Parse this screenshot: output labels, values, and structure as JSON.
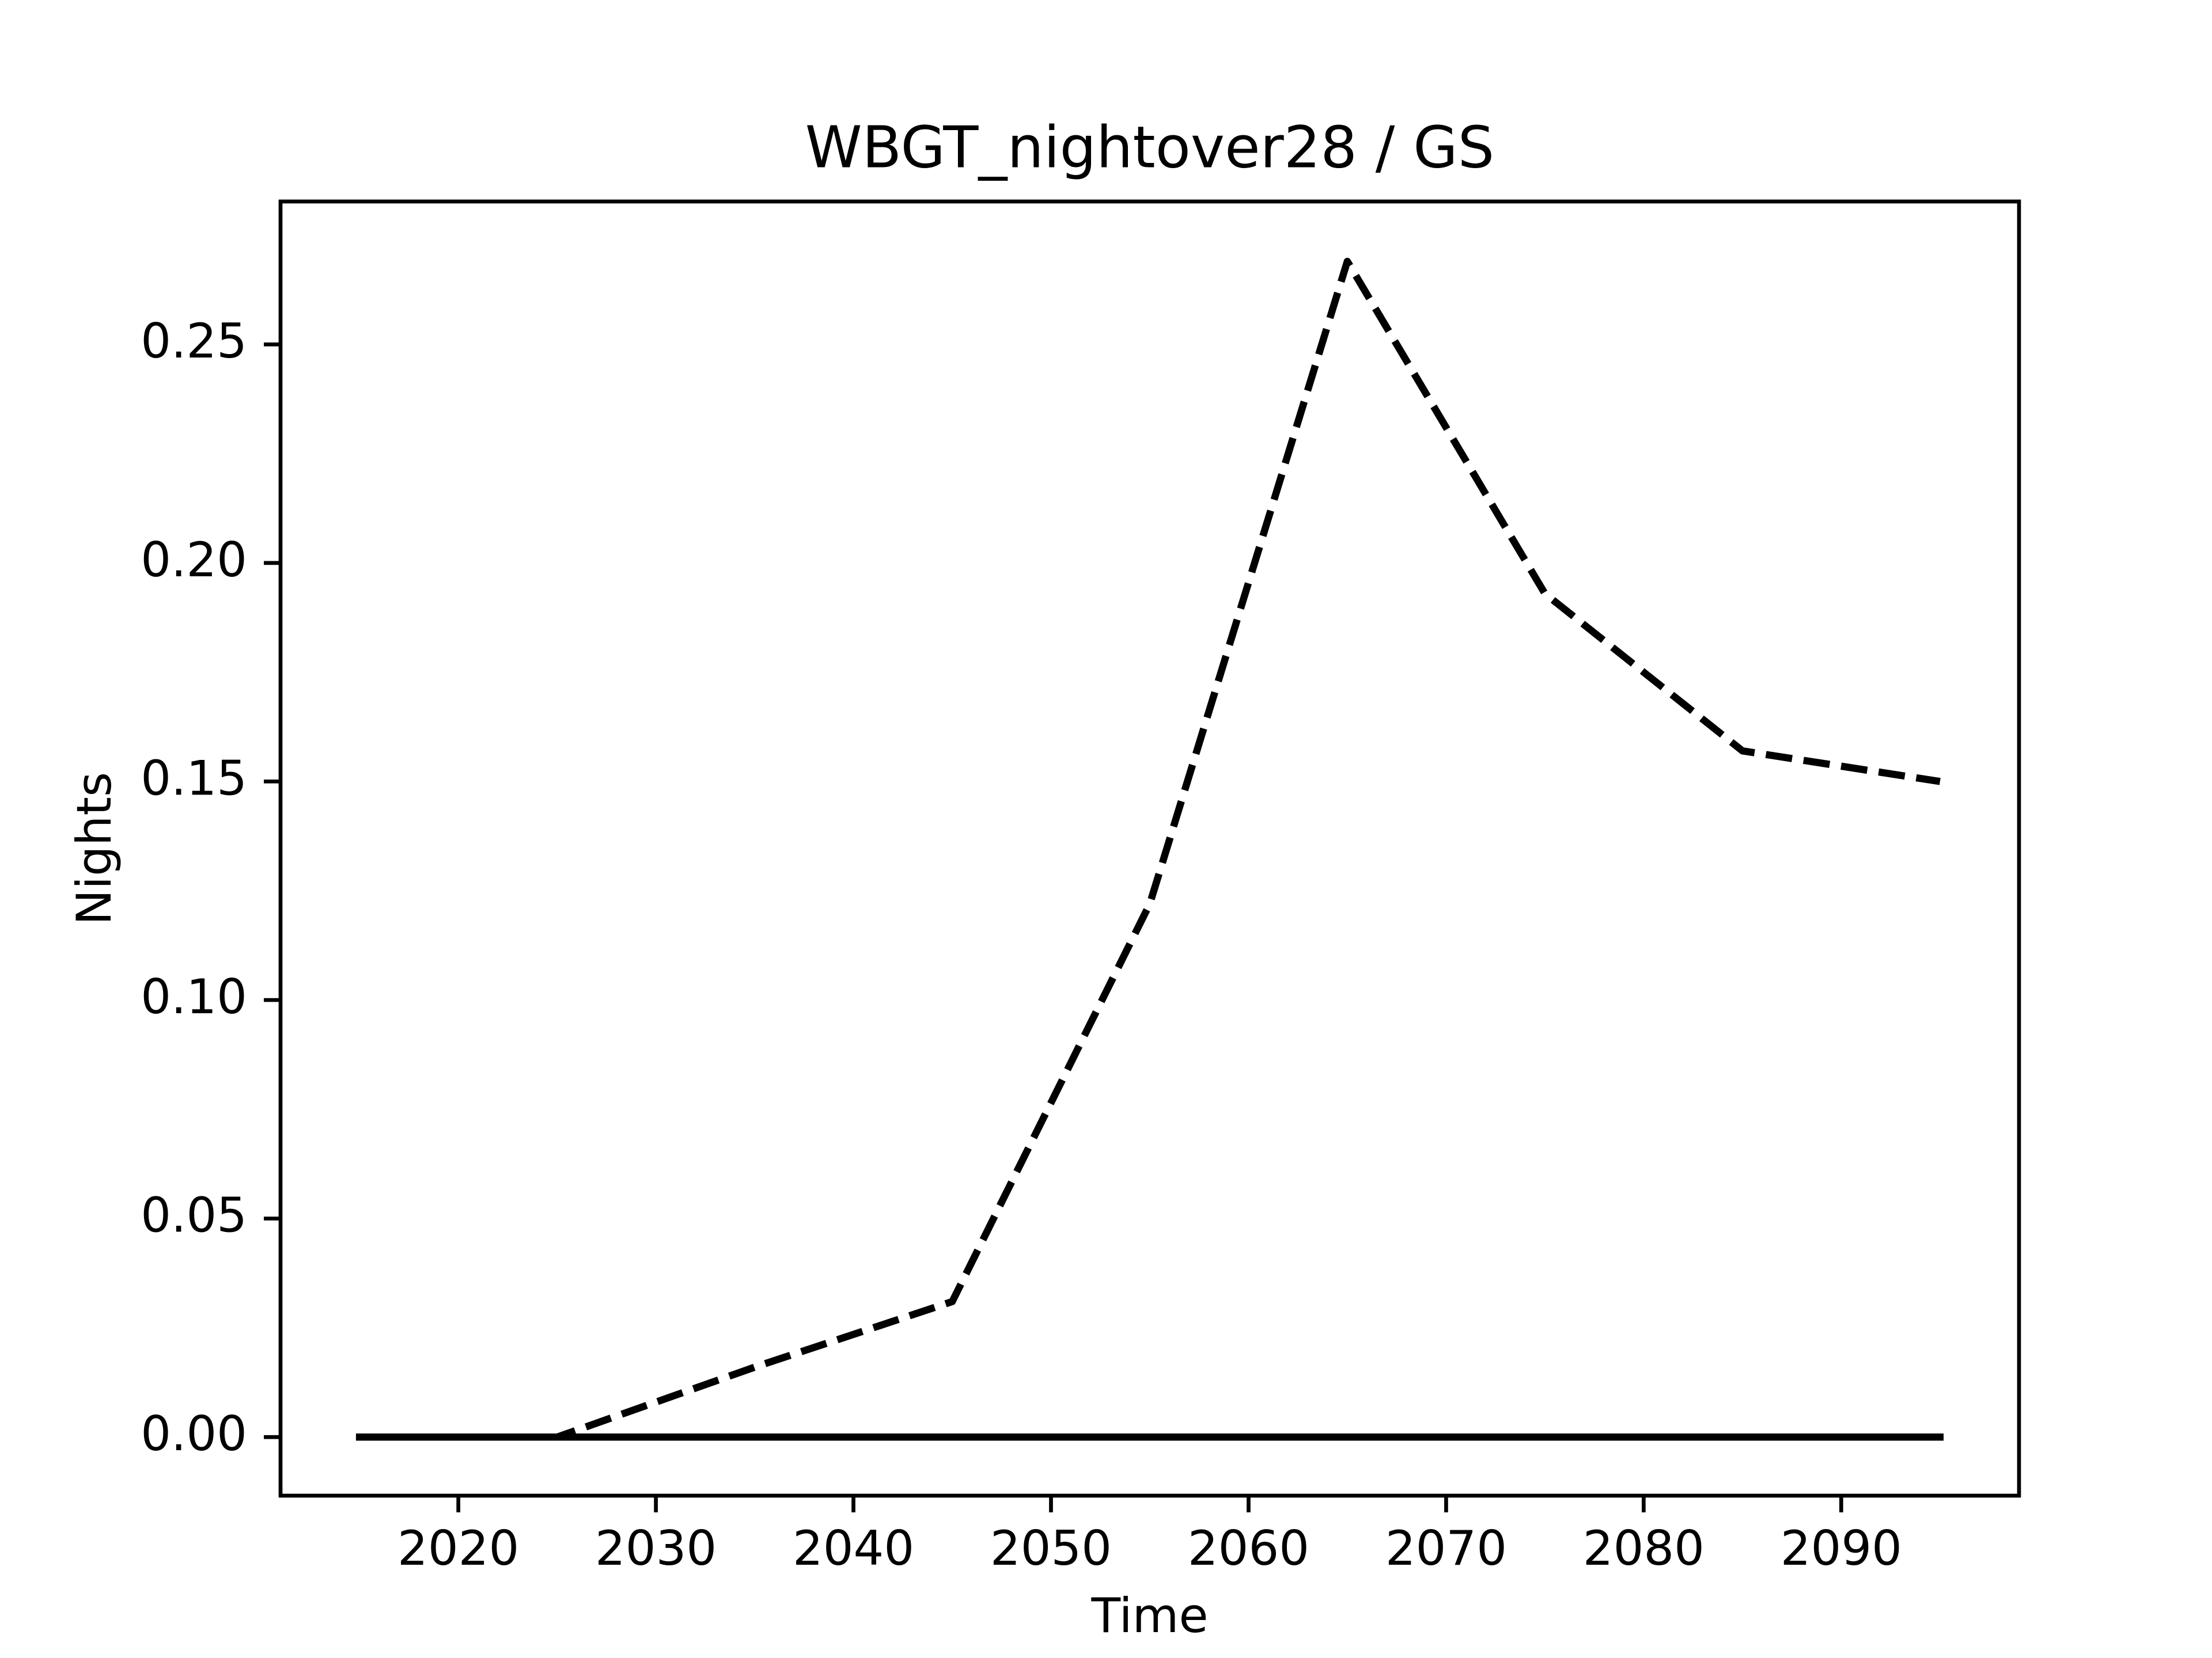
{
  "chart_data": {
    "type": "line",
    "title": "WBGT_nightover28 / GS",
    "xlabel": "Time",
    "ylabel": "Nights",
    "x": [
      2015,
      2025,
      2035,
      2045,
      2055,
      2065,
      2075,
      2085,
      2095
    ],
    "series": [
      {
        "color": "#000000",
        "linestyle": "dashed",
        "values": [
          0,
          0,
          0.016,
          0.031,
          0.122,
          0.269,
          0.193,
          0.157,
          0.15
        ]
      },
      {
        "color": "#000000",
        "linestyle": "solid",
        "values": [
          0,
          0,
          0,
          0,
          0,
          0,
          0,
          0,
          0
        ]
      }
    ],
    "xlim": [
      2011,
      2099
    ],
    "ylim": [
      -0.0134,
      0.2827
    ],
    "xticks": [
      2020,
      2030,
      2040,
      2050,
      2060,
      2070,
      2080,
      2090
    ],
    "yticks": [
      {
        "value": 0,
        "label": "0.00"
      },
      {
        "value": 0.05,
        "label": "0.05"
      },
      {
        "value": 0.1,
        "label": "0.10"
      },
      {
        "value": 0.15,
        "label": "0.15"
      },
      {
        "value": 0.2,
        "label": "0.20"
      },
      {
        "value": 0.25,
        "label": "0.25"
      }
    ],
    "grid": false
  }
}
